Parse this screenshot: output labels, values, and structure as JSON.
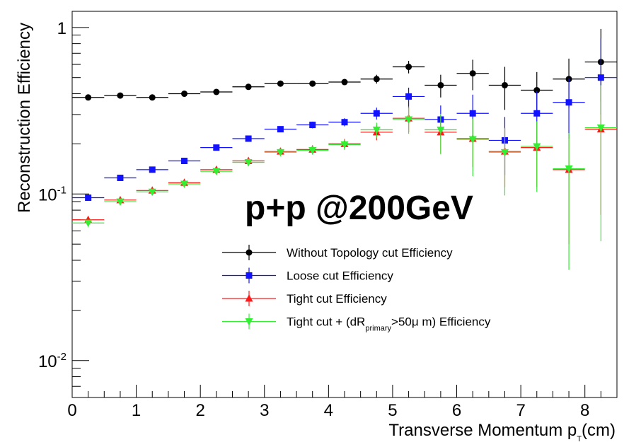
{
  "chart_data": {
    "type": "scatter",
    "annotation": "p+p @200GeV",
    "xlabel": "Transverse Momentum p",
    "xlabel_sub": "T",
    "xlabel_unit": "(cm)",
    "ylabel": "Reconstruction Efficiency",
    "xlim": [
      0,
      8.5
    ],
    "ylim": [
      0.006,
      1.25
    ],
    "yscale": "log",
    "grid": false,
    "legend_position": "center",
    "x_ticks": [
      {
        "value": 0,
        "label": "0"
      },
      {
        "value": 1,
        "label": "1"
      },
      {
        "value": 2,
        "label": "2"
      },
      {
        "value": 3,
        "label": "3"
      },
      {
        "value": 4,
        "label": "4"
      },
      {
        "value": 5,
        "label": "5"
      },
      {
        "value": 6,
        "label": "6"
      },
      {
        "value": 7,
        "label": "7"
      },
      {
        "value": 8,
        "label": "8"
      }
    ],
    "y_ticks": [
      {
        "value": 1,
        "base": "1",
        "exp": ""
      },
      {
        "value": 0.1,
        "base": "10",
        "exp": "-1"
      },
      {
        "value": 0.01,
        "base": "10",
        "exp": "-2"
      }
    ],
    "series": [
      {
        "name": "Without Topology cut Efficiency",
        "color": "#000000",
        "marker": "circle",
        "x": [
          0.25,
          0.75,
          1.25,
          1.75,
          2.25,
          2.75,
          3.25,
          3.75,
          4.25,
          4.75,
          5.25,
          5.75,
          6.25,
          6.75,
          7.25,
          7.75,
          8.25
        ],
        "y": [
          0.38,
          0.39,
          0.38,
          0.4,
          0.41,
          0.44,
          0.46,
          0.46,
          0.47,
          0.49,
          0.58,
          0.45,
          0.53,
          0.45,
          0.42,
          0.49,
          0.62
        ],
        "yerr_low": [
          0.005,
          0.005,
          0.005,
          0.006,
          0.007,
          0.009,
          0.011,
          0.013,
          0.017,
          0.03,
          0.05,
          0.07,
          0.11,
          0.13,
          0.12,
          0.16,
          0.26
        ],
        "yerr_high": [
          0.005,
          0.005,
          0.005,
          0.006,
          0.007,
          0.009,
          0.011,
          0.013,
          0.017,
          0.03,
          0.05,
          0.07,
          0.11,
          0.13,
          0.12,
          0.16,
          0.36
        ]
      },
      {
        "name": "Loose cut Efficiency",
        "color": "#1212ff",
        "marker": "square",
        "x": [
          0.25,
          0.75,
          1.25,
          1.75,
          2.25,
          2.75,
          3.25,
          3.75,
          4.25,
          4.75,
          5.25,
          5.75,
          6.25,
          6.75,
          7.25,
          7.75,
          8.25
        ],
        "y": [
          0.095,
          0.125,
          0.14,
          0.158,
          0.19,
          0.215,
          0.245,
          0.26,
          0.27,
          0.305,
          0.385,
          0.28,
          0.305,
          0.21,
          0.305,
          0.355,
          0.5
        ],
        "yerr_low": [
          0.003,
          0.004,
          0.004,
          0.005,
          0.006,
          0.008,
          0.01,
          0.012,
          0.015,
          0.025,
          0.05,
          0.06,
          0.09,
          0.08,
          0.11,
          0.14,
          0.2
        ],
        "yerr_high": [
          0.003,
          0.004,
          0.004,
          0.005,
          0.006,
          0.008,
          0.01,
          0.012,
          0.015,
          0.025,
          0.05,
          0.06,
          0.09,
          0.08,
          0.11,
          0.14,
          0.36
        ]
      },
      {
        "name": "Tight cut Efficiency",
        "color": "#ff1a1a",
        "marker": "triangle-up",
        "x": [
          0.25,
          0.75,
          1.25,
          1.75,
          2.25,
          2.75,
          3.25,
          3.75,
          4.25,
          4.75,
          5.25,
          5.75,
          6.25,
          6.75,
          7.25,
          7.75,
          8.25
        ],
        "y": [
          0.07,
          0.092,
          0.105,
          0.117,
          0.14,
          0.158,
          0.18,
          0.185,
          0.2,
          0.235,
          0.285,
          0.235,
          0.215,
          0.18,
          0.19,
          0.14,
          0.245
        ],
        "yerr_low": [
          0.003,
          0.004,
          0.004,
          0.005,
          0.006,
          0.008,
          0.009,
          0.011,
          0.014,
          0.025,
          0.05,
          0.06,
          0.07,
          0.07,
          0.08,
          0.09,
          0.17
        ],
        "yerr_high": [
          0.003,
          0.004,
          0.004,
          0.005,
          0.006,
          0.008,
          0.009,
          0.011,
          0.014,
          0.025,
          0.05,
          0.06,
          0.07,
          0.07,
          0.08,
          0.09,
          0.2
        ]
      },
      {
        "name": "Tight cut + (dR",
        "name_sub": "primary",
        "name_tail": ">50μ m) Efficiency",
        "color": "#33ee33",
        "marker": "triangle-down",
        "x": [
          0.25,
          0.75,
          1.25,
          1.75,
          2.25,
          2.75,
          3.25,
          3.75,
          4.25,
          4.75,
          5.25,
          5.75,
          6.25,
          6.75,
          7.25,
          7.75,
          8.25
        ],
        "y": [
          0.067,
          0.09,
          0.103,
          0.115,
          0.137,
          0.155,
          0.178,
          0.183,
          0.198,
          0.243,
          0.28,
          0.243,
          0.213,
          0.178,
          0.193,
          0.142,
          0.25
        ],
        "yerr_low": [
          0.003,
          0.004,
          0.004,
          0.005,
          0.006,
          0.008,
          0.009,
          0.011,
          0.014,
          0.025,
          0.05,
          0.07,
          0.085,
          0.08,
          0.09,
          0.107,
          0.198
        ],
        "yerr_high": [
          0.003,
          0.004,
          0.004,
          0.005,
          0.006,
          0.008,
          0.009,
          0.011,
          0.014,
          0.025,
          0.05,
          0.06,
          0.07,
          0.07,
          0.08,
          0.09,
          0.2
        ]
      }
    ]
  }
}
